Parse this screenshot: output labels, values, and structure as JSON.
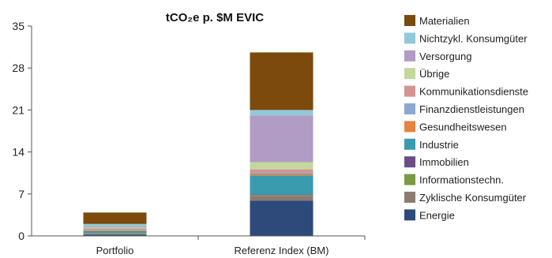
{
  "chart_data": {
    "type": "bar",
    "stacked": true,
    "title": "tCO₂e p. $M EVIC",
    "xlabel": "",
    "ylabel": "",
    "categories": [
      "Portfolio",
      "Referenz Index (BM)"
    ],
    "ylim": [
      0,
      35
    ],
    "yticks": [
      0,
      7,
      14,
      21,
      28,
      35
    ],
    "grid": false,
    "legend_position": "right",
    "series": [
      {
        "name": "Energie",
        "color": "#2E4A7A",
        "values": [
          0.2,
          5.9
        ]
      },
      {
        "name": "Zyklische Konsumgüter",
        "color": "#8C7B70",
        "values": [
          0.15,
          0.8
        ]
      },
      {
        "name": "Informationstechn.",
        "color": "#7A9A44",
        "values": [
          0.1,
          0.1
        ]
      },
      {
        "name": "Immobilien",
        "color": "#6A4E86",
        "values": [
          0.05,
          0.1
        ]
      },
      {
        "name": "Industrie",
        "color": "#3A9AAE",
        "values": [
          0.3,
          3.2
        ]
      },
      {
        "name": "Gesundheitswesen",
        "color": "#E4843E",
        "values": [
          0.15,
          0.3
        ]
      },
      {
        "name": "Finanzdienstleistungen",
        "color": "#8FA8D2",
        "values": [
          0.1,
          0.2
        ]
      },
      {
        "name": "Kommunikationsdienste",
        "color": "#D49494",
        "values": [
          0.2,
          0.5
        ]
      },
      {
        "name": "Übrige",
        "color": "#C4D79C",
        "values": [
          0.2,
          1.2
        ]
      },
      {
        "name": "Versorgung",
        "color": "#B09CC4",
        "values": [
          0.15,
          7.8
        ]
      },
      {
        "name": "Nichtzykl. Konsumgüter",
        "color": "#93C8DA",
        "values": [
          0.4,
          0.9
        ]
      },
      {
        "name": "Materialien",
        "color": "#7B4A0C",
        "values": [
          1.9,
          9.6
        ]
      }
    ]
  }
}
